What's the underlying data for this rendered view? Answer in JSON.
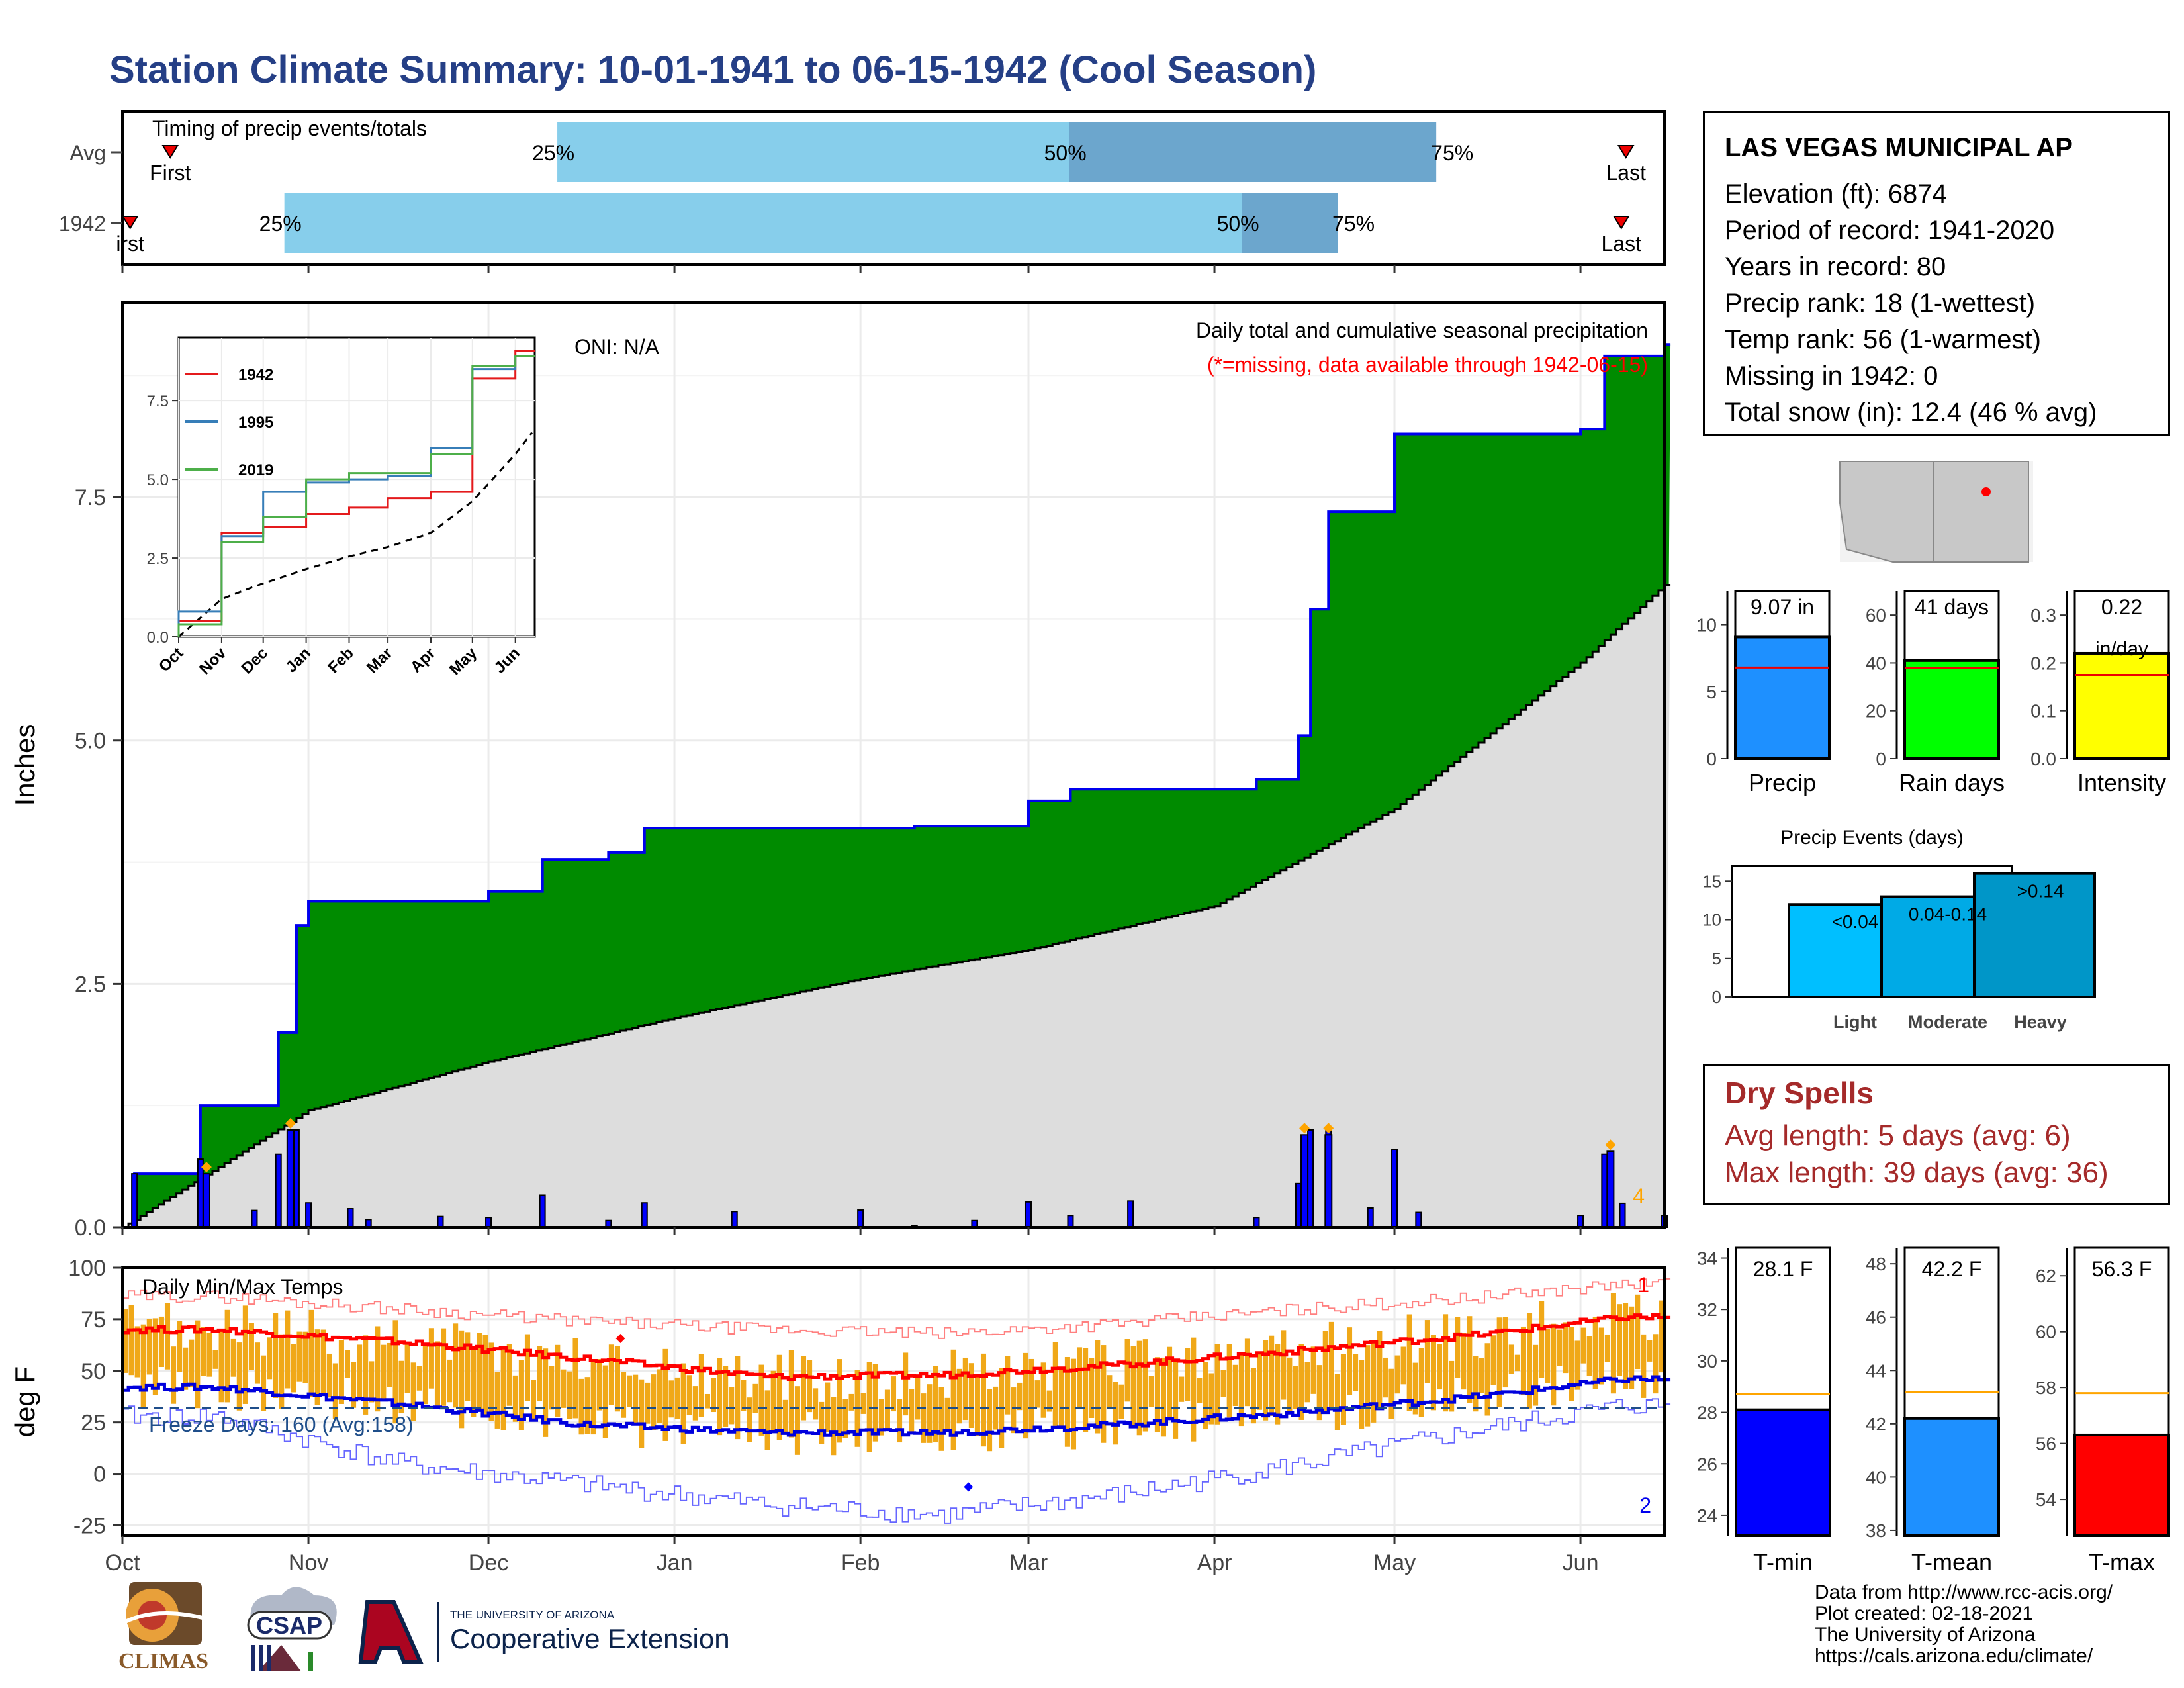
{
  "title": "Station Climate Summary: 10-01-1941 to 06-15-1942 (Cool Season)",
  "timing": {
    "title": "Timing of precip events/totals",
    "rows": [
      {
        "label": "Avg",
        "first_label": "First",
        "last_label": "Last",
        "first": 0.031,
        "last": 0.975,
        "p25": 0.282,
        "p50": 0.614,
        "p75": 0.852
      },
      {
        "label": "1942",
        "first_label": "irst",
        "last_label": "Last",
        "first": 0.005,
        "last": 0.972,
        "p25": 0.105,
        "p50": 0.726,
        "p75": 0.788
      }
    ],
    "p25_label": "25%",
    "p50_label": "50%",
    "p75_label": "75%"
  },
  "main_chart": {
    "ylabel": "Inches",
    "oni": "ONI: N/A",
    "subtitle": "Daily total and cumulative seasonal precipitation",
    "missing_note": "(*=missing, data available through 1942-06-15)",
    "corner_count": "4",
    "yticks": [
      "0.0",
      "2.5",
      "5.0",
      "7.5"
    ],
    "months": [
      "Oct",
      "Nov",
      "Dec",
      "Jan",
      "Feb",
      "Mar",
      "Apr",
      "May",
      "Jun"
    ]
  },
  "inset": {
    "legend": [
      "1942",
      "1995",
      "2019"
    ],
    "yticks": [
      "0.0",
      "2.5",
      "5.0",
      "7.5"
    ],
    "months": [
      "Oct",
      "Nov",
      "Dec",
      "Jan",
      "Feb",
      "Mar",
      "Apr",
      "May",
      "Jun"
    ]
  },
  "temp_chart": {
    "ylabel": "deg F",
    "title": "Daily Min/Max Temps",
    "freeze": "Freeze Days: 160 (Avg:158)",
    "count_top": "1",
    "count_bottom": "2",
    "yticks": [
      "100",
      "75",
      "50",
      "25",
      "0",
      "-25"
    ]
  },
  "station": {
    "name": "LAS VEGAS MUNICIPAL AP",
    "lines": [
      "Elevation (ft): 6874",
      "Period of record: 1941-2020",
      "Years in record: 80",
      "Precip rank: 18 (1-wettest)",
      "Temp rank: 56 (1-warmest)",
      "Missing in 1942: 0",
      "Total snow (in): 12.4 (46 % avg)"
    ]
  },
  "precip_bars": [
    {
      "name": "Precip",
      "value_label": "9.07 in",
      "yticks": [
        "0",
        "5",
        "10"
      ],
      "color": "#1e90ff"
    },
    {
      "name": "Rain days",
      "value_label": "41 days",
      "yticks": [
        "0",
        "20",
        "40",
        "60"
      ],
      "color": "#00ff00"
    },
    {
      "name": "Intensity",
      "value_label": "0.22",
      "value_label2": "in/day",
      "yticks": [
        "0.0",
        "0.1",
        "0.2",
        "0.3"
      ],
      "color": "#ffff00"
    }
  ],
  "events": {
    "title": "Precip Events (days)",
    "yticks": [
      "0",
      "5",
      "10",
      "15"
    ],
    "categories": [
      "Light",
      "Moderate",
      "Heavy"
    ],
    "bar_labels": [
      "<0.04",
      "0.04-0.14",
      ">0.14"
    ]
  },
  "dry_spells": {
    "title": "Dry Spells",
    "avg": "Avg length: 5 days (avg: 6)",
    "max": "Max length: 39 days (avg: 36)"
  },
  "temp_bars": [
    {
      "name": "T-min",
      "value_label": "28.1 F",
      "yticks": [
        "24",
        "26",
        "28",
        "30",
        "32",
        "34"
      ],
      "color": "#0000ff"
    },
    {
      "name": "T-mean",
      "value_label": "42.2 F",
      "yticks": [
        "38",
        "40",
        "42",
        "44",
        "46",
        "48"
      ],
      "color": "#1e90ff"
    },
    {
      "name": "T-max",
      "value_label": "56.3 F",
      "yticks": [
        "54",
        "56",
        "58",
        "60",
        "62"
      ],
      "color": "#ff0000"
    }
  ],
  "credits": [
    "Data from http://www.rcc-acis.org/",
    "Plot created: 02-18-2021",
    "The University of Arizona",
    "https://cals.arizona.edu/climate/"
  ],
  "logos": {
    "climas": "CLIMAS",
    "csap": "CSAP",
    "ua_small": "THE UNIVERSITY OF ARIZONA",
    "ua_big": "Cooperative Extension"
  },
  "chart_data": [
    {
      "type": "area",
      "title": "Daily total and cumulative seasonal precipitation",
      "ylabel": "Inches",
      "ylim": [
        0,
        9.5
      ],
      "x_range": [
        "1941-10-01",
        "1942-06-15"
      ],
      "series": [
        {
          "name": "1942",
          "x": [
            "1941-10-01",
            "1941-10-03",
            "1941-10-14",
            "1941-10-27",
            "1941-10-30",
            "1941-11-01",
            "1941-12-01",
            "1941-12-10",
            "1941-12-21",
            "1941-12-27",
            "1942-02-10",
            "1942-03-01",
            "1942-03-08",
            "1942-04-08",
            "1942-04-15",
            "1942-04-17",
            "1942-04-20",
            "1942-05-01",
            "1942-06-01",
            "1942-06-05",
            "1942-06-15"
          ],
          "values": [
            0.0,
            0.55,
            1.25,
            2.0,
            3.1,
            3.35,
            3.45,
            3.78,
            3.85,
            4.1,
            4.12,
            4.38,
            4.5,
            4.6,
            5.05,
            6.35,
            7.35,
            8.15,
            8.2,
            8.95,
            9.07
          ]
        },
        {
          "name": "Average",
          "x": [
            "1941-10-01",
            "1941-11-01",
            "1941-12-01",
            "1942-01-01",
            "1942-02-01",
            "1942-03-01",
            "1942-04-01",
            "1942-05-01",
            "1942-06-01",
            "1942-06-15"
          ],
          "values": [
            0.0,
            1.2,
            1.7,
            2.15,
            2.55,
            2.85,
            3.3,
            4.3,
            5.8,
            6.6
          ]
        }
      ],
      "daily_precip_peaks": [
        {
          "x": "1941-10-15",
          "y": 0.55
        },
        {
          "x": "1941-10-29",
          "y": 1.0
        },
        {
          "x": "1942-04-16",
          "y": 0.95
        },
        {
          "x": "1942-04-20",
          "y": 0.95
        },
        {
          "x": "1942-06-06",
          "y": 0.78
        }
      ]
    },
    {
      "type": "line",
      "title": "",
      "categories": [
        "Oct",
        "Nov",
        "Dec",
        "Jan",
        "Feb",
        "Mar",
        "Apr",
        "May",
        "Jun"
      ],
      "ylim": [
        0,
        9.5
      ],
      "series": [
        {
          "name": "1942",
          "values": [
            0.5,
            3.3,
            3.5,
            3.9,
            4.1,
            4.4,
            4.6,
            8.2,
            9.07
          ]
        },
        {
          "name": "1995",
          "values": [
            0.8,
            3.2,
            4.6,
            4.9,
            5.0,
            5.1,
            6.0,
            8.5,
            8.9
          ]
        },
        {
          "name": "2019",
          "values": [
            0.4,
            3.0,
            3.8,
            5.0,
            5.2,
            5.2,
            5.8,
            8.6,
            8.9
          ]
        }
      ]
    },
    {
      "type": "line",
      "title": "Daily Min/Max Temps",
      "ylabel": "deg F",
      "ylim": [
        -30,
        100
      ],
      "categories": [
        "Oct",
        "Nov",
        "Dec",
        "Jan",
        "Feb",
        "Mar",
        "Apr",
        "May",
        "Jun"
      ],
      "series": [
        {
          "name": "Avg max",
          "values": [
            70,
            64,
            56,
            47,
            48,
            53,
            60,
            68,
            76
          ]
        },
        {
          "name": "Avg min",
          "values": [
            42,
            34,
            24,
            20,
            20,
            24,
            30,
            38,
            46
          ]
        },
        {
          "name": "Record high",
          "values": [
            86,
            80,
            74,
            70,
            68,
            73,
            80,
            86,
            92
          ]
        },
        {
          "name": "Record low",
          "values": [
            28,
            5,
            -5,
            -15,
            -20,
            -10,
            5,
            22,
            33
          ]
        }
      ],
      "freeze_threshold": 32
    },
    {
      "type": "bar",
      "title": "Precip Events (days)",
      "categories": [
        "Light",
        "Moderate",
        "Heavy"
      ],
      "values": [
        12,
        13,
        16
      ],
      "ylim": [
        0,
        17
      ]
    }
  ]
}
